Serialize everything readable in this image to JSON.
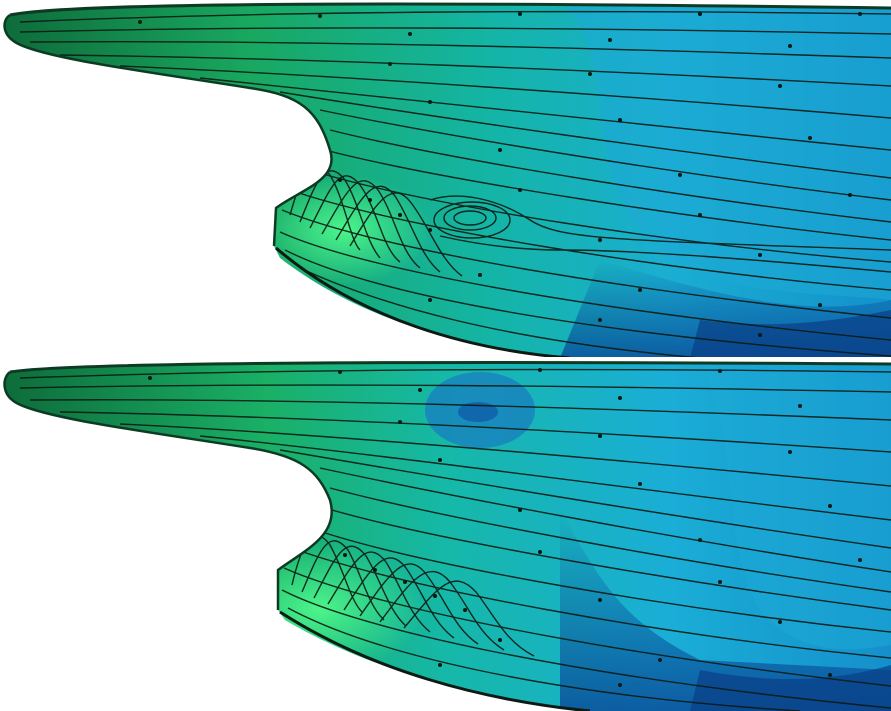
{
  "figure": {
    "panels": [
      {
        "id": "top",
        "vortex": true
      },
      {
        "id": "bottom",
        "vortex": false
      }
    ],
    "colors": {
      "hull_green_light": "#3df07a",
      "hull_green": "#1fbf6a",
      "hull_teal": "#17b8a0",
      "hull_cyan": "#1fb8d8",
      "hull_blue": "#1485c7",
      "hull_deep_blue": "#0a4f9a",
      "streamline": "#0b1a12",
      "background": "#ffffff"
    }
  }
}
